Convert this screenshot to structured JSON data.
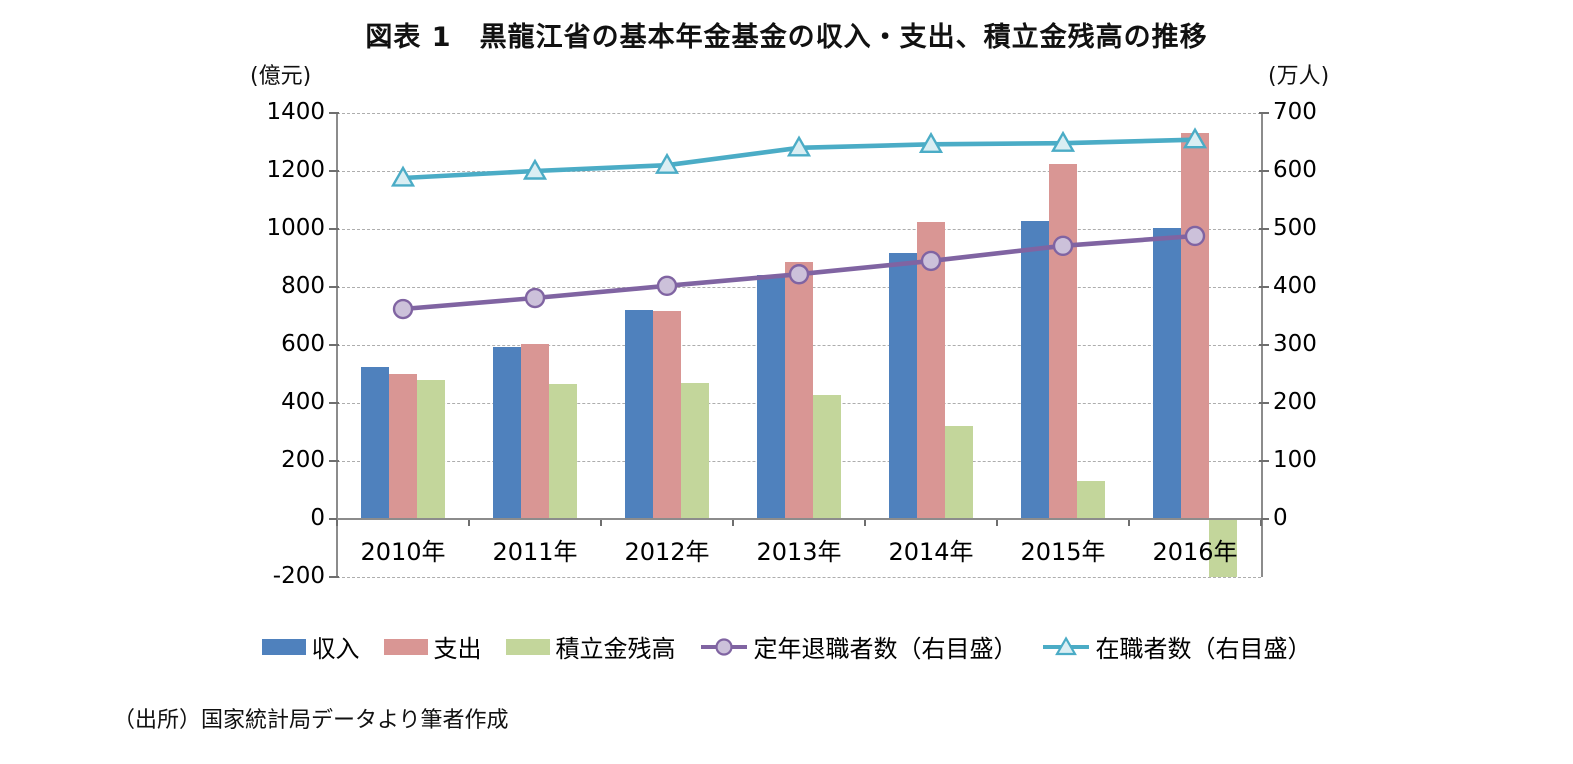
{
  "title": "図表 1　黒龍江省の基本年金基金の収入・支出、積立金残高の推移",
  "source": "（出所）国家統計局データより筆者作成",
  "colors": {
    "income": "#4F81BD",
    "expenditure": "#D99694",
    "balance": "#C3D69B",
    "retirees": "#8064A2",
    "retirees_fill": "#CCC1DA",
    "active_workers": "#4BACC6",
    "active_workers_fill": "#DAEEF3",
    "grid": "#ADADAD",
    "axis": "#8C8C8C"
  },
  "chart_data": {
    "type": "combo-bar-line",
    "categories": [
      "2010年",
      "2011年",
      "2012年",
      "2013年",
      "2014年",
      "2015年",
      "2016年"
    ],
    "series": [
      {
        "name": "収入",
        "key": "income",
        "type": "bar",
        "axis": "left",
        "values": [
          525,
          592,
          722,
          840,
          918,
          1028,
          1005
        ]
      },
      {
        "name": "支出",
        "key": "expenditure",
        "type": "bar",
        "axis": "left",
        "values": [
          500,
          605,
          718,
          885,
          1025,
          1225,
          1332
        ]
      },
      {
        "name": "積立金残高",
        "key": "balance",
        "type": "bar",
        "axis": "left",
        "values": [
          480,
          464,
          468,
          428,
          322,
          130,
          -200
        ]
      },
      {
        "name": "定年退職者数（右目盛）",
        "key": "retirees",
        "type": "line",
        "marker": "circle",
        "axis": "right",
        "values": [
          362,
          381,
          402,
          422,
          445,
          471,
          488
        ]
      },
      {
        "name": "在職者数（右目盛）",
        "key": "active_workers",
        "type": "line",
        "marker": "triangle",
        "axis": "right",
        "values": [
          588,
          600,
          610,
          640,
          646,
          648,
          654
        ]
      }
    ],
    "left_axis": {
      "label": "(億元)",
      "min": -200,
      "max": 1400,
      "tick_step": 200,
      "ticks": [
        1400,
        1200,
        1000,
        800,
        600,
        400,
        200,
        0,
        -200
      ]
    },
    "right_axis": {
      "label": "(万人)",
      "min": -100,
      "max": 700,
      "tick_step": 100,
      "ticks": [
        700,
        600,
        500,
        400,
        300,
        200,
        100,
        0
      ]
    },
    "legend_position": "bottom",
    "grid": "horizontal-dashed"
  }
}
